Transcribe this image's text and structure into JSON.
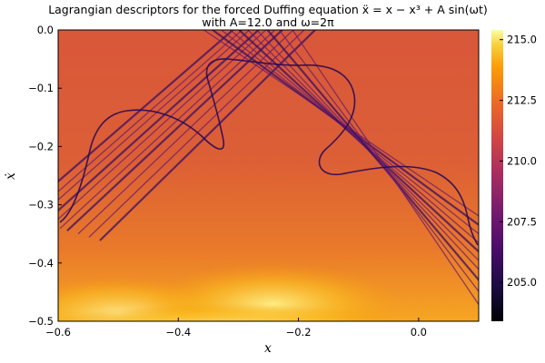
{
  "chart_data": {
    "type": "heatmap",
    "title_line1": "Lagrangian descriptors for the forced Duffing equation ẍ = x − x³ + A sin(ωt)",
    "title_line2": "with A=12.0 and ω=2π",
    "xlabel": "x",
    "ylabel": "ẋ",
    "xlim": [
      -0.6,
      0.1
    ],
    "ylim": [
      -0.5,
      0.0
    ],
    "x_ticks": [
      {
        "value": -0.6,
        "label": "−0.6"
      },
      {
        "value": -0.4,
        "label": "−0.4"
      },
      {
        "value": -0.2,
        "label": "−0.2"
      },
      {
        "value": 0.0,
        "label": "0.0"
      }
    ],
    "y_ticks": [
      {
        "value": 0.0,
        "label": "0.0"
      },
      {
        "value": -0.1,
        "label": "−0.1"
      },
      {
        "value": -0.2,
        "label": "−0.2"
      },
      {
        "value": -0.3,
        "label": "−0.3"
      },
      {
        "value": -0.4,
        "label": "−0.4"
      },
      {
        "value": -0.5,
        "label": "−0.5"
      }
    ],
    "colorbar": {
      "colormap": "inferno",
      "range": [
        203.4,
        215.4
      ],
      "ticks": [
        {
          "value": 205.0,
          "label": "205.0"
        },
        {
          "value": 207.5,
          "label": "207.5"
        },
        {
          "value": 210.0,
          "label": "210.0"
        },
        {
          "value": 212.5,
          "label": "212.5"
        },
        {
          "value": 215.0,
          "label": "215.0"
        }
      ]
    },
    "grid": false,
    "legend": "none"
  }
}
